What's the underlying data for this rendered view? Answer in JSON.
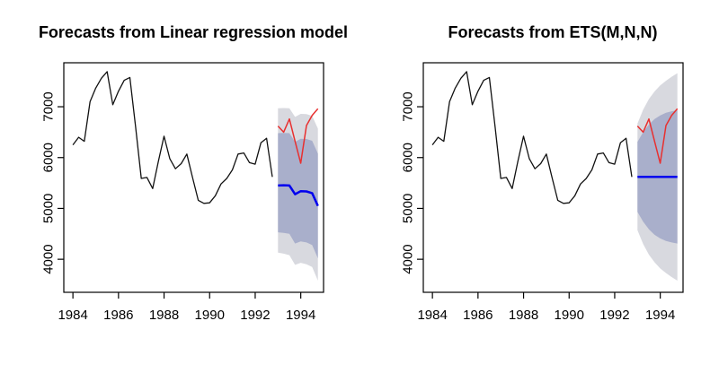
{
  "figure": {
    "background": "#ffffff",
    "panel_count": 2
  },
  "chart_data": [
    {
      "type": "line",
      "title": "Forecasts from Linear regression model",
      "x_axis": {
        "label": "",
        "ticks": [
          1984,
          1986,
          1988,
          1990,
          1992,
          1994
        ],
        "range": [
          1983.6,
          1995.0
        ]
      },
      "y_axis": {
        "label": "",
        "ticks": [
          4000,
          5000,
          6000,
          7000
        ],
        "range": [
          3350,
          7865
        ]
      },
      "grid": false,
      "legend": "none",
      "bands": [
        {
          "level": "95",
          "color": "#D8D9DF",
          "x": [
            1993,
            1993.25,
            1993.5,
            1993.75,
            1994,
            1994.25,
            1994.5,
            1994.75
          ],
          "hi": [
            6970,
            6975,
            6970,
            6800,
            6860,
            6855,
            6820,
            6570
          ],
          "lo": [
            4130,
            4110,
            4080,
            3890,
            3930,
            3900,
            3850,
            3580
          ]
        },
        {
          "level": "80",
          "color": "#A9AFCB",
          "x": [
            1993,
            1993.25,
            1993.5,
            1993.75,
            1994,
            1994.25,
            1994.5,
            1994.75
          ],
          "hi": [
            6480,
            6485,
            6480,
            6310,
            6370,
            6365,
            6330,
            6080
          ],
          "lo": [
            4530,
            4520,
            4500,
            4310,
            4350,
            4330,
            4280,
            4020
          ]
        }
      ],
      "series": [
        {
          "name": "historical",
          "color": "#111111",
          "width": 1.3,
          "x": [
            1984,
            1984.25,
            1984.5,
            1984.75,
            1985,
            1985.25,
            1985.5,
            1985.75,
            1986,
            1986.25,
            1986.5,
            1986.75,
            1987,
            1987.25,
            1987.5,
            1987.75,
            1988,
            1988.25,
            1988.5,
            1988.75,
            1989,
            1989.25,
            1989.5,
            1989.75,
            1990,
            1990.25,
            1990.5,
            1990.75,
            1991,
            1991.25,
            1991.5,
            1991.75,
            1992,
            1992.25,
            1992.5,
            1992.75
          ],
          "values": [
            6250,
            6400,
            6320,
            7100,
            7365,
            7560,
            7690,
            7040,
            7305,
            7520,
            7575,
            6600,
            5590,
            5610,
            5390,
            5925,
            6420,
            5980,
            5780,
            5880,
            6070,
            5610,
            5160,
            5100,
            5110,
            5250,
            5480,
            5590,
            5760,
            6070,
            6090,
            5900,
            5870,
            6290,
            6380,
            5620
          ]
        },
        {
          "name": "forecast-mean",
          "color": "#0000EE",
          "width": 2.5,
          "x": [
            1993,
            1993.25,
            1993.5,
            1993.75,
            1994,
            1994.25,
            1994.5,
            1994.75
          ],
          "values": [
            5450,
            5455,
            5450,
            5280,
            5340,
            5335,
            5300,
            5050
          ]
        },
        {
          "name": "actual",
          "color": "#E83030",
          "width": 1.5,
          "x": [
            1993,
            1993.25,
            1993.5,
            1993.75,
            1994,
            1994.25,
            1994.5,
            1994.75
          ],
          "values": [
            6620,
            6500,
            6760,
            6320,
            5890,
            6630,
            6830,
            6960
          ]
        }
      ]
    },
    {
      "type": "line",
      "title": "Forecasts from ETS(M,N,N)",
      "x_axis": {
        "label": "",
        "ticks": [
          1984,
          1986,
          1988,
          1990,
          1992,
          1994
        ],
        "range": [
          1983.6,
          1995.0
        ]
      },
      "y_axis": {
        "label": "",
        "ticks": [
          4000,
          5000,
          6000,
          7000
        ],
        "range": [
          3350,
          7865
        ]
      },
      "grid": false,
      "legend": "none",
      "bands": [
        {
          "level": "95",
          "color": "#D8D9DF",
          "x": [
            1993,
            1993.25,
            1993.5,
            1993.75,
            1994,
            1994.25,
            1994.5,
            1994.75
          ],
          "hi": [
            6670,
            6940,
            7150,
            7300,
            7420,
            7510,
            7590,
            7660
          ],
          "lo": [
            4570,
            4300,
            4090,
            3940,
            3820,
            3730,
            3650,
            3580
          ]
        },
        {
          "level": "80",
          "color": "#A9AFCB",
          "x": [
            1993,
            1993.25,
            1993.5,
            1993.75,
            1994,
            1994.25,
            1994.5,
            1994.75
          ],
          "hi": [
            6310,
            6500,
            6650,
            6760,
            6830,
            6880,
            6910,
            6930
          ],
          "lo": [
            4930,
            4740,
            4590,
            4480,
            4410,
            4360,
            4330,
            4310
          ]
        }
      ],
      "series": [
        {
          "name": "historical",
          "color": "#111111",
          "width": 1.3,
          "x": [
            1984,
            1984.25,
            1984.5,
            1984.75,
            1985,
            1985.25,
            1985.5,
            1985.75,
            1986,
            1986.25,
            1986.5,
            1986.75,
            1987,
            1987.25,
            1987.5,
            1987.75,
            1988,
            1988.25,
            1988.5,
            1988.75,
            1989,
            1989.25,
            1989.5,
            1989.75,
            1990,
            1990.25,
            1990.5,
            1990.75,
            1991,
            1991.25,
            1991.5,
            1991.75,
            1992,
            1992.25,
            1992.5,
            1992.75
          ],
          "values": [
            6250,
            6400,
            6320,
            7100,
            7365,
            7560,
            7690,
            7040,
            7305,
            7520,
            7575,
            6600,
            5590,
            5610,
            5390,
            5925,
            6420,
            5980,
            5780,
            5880,
            6070,
            5610,
            5160,
            5100,
            5110,
            5250,
            5480,
            5590,
            5760,
            6070,
            6090,
            5900,
            5870,
            6290,
            6380,
            5620
          ]
        },
        {
          "name": "forecast-mean",
          "color": "#0000EE",
          "width": 2.5,
          "x": [
            1993,
            1993.25,
            1993.5,
            1993.75,
            1994,
            1994.25,
            1994.5,
            1994.75
          ],
          "values": [
            5620,
            5620,
            5620,
            5620,
            5620,
            5620,
            5620,
            5620
          ]
        },
        {
          "name": "actual",
          "color": "#E83030",
          "width": 1.5,
          "x": [
            1993,
            1993.25,
            1993.5,
            1993.75,
            1994,
            1994.25,
            1994.5,
            1994.75
          ],
          "values": [
            6620,
            6500,
            6760,
            6320,
            5890,
            6630,
            6830,
            6960
          ]
        }
      ]
    }
  ]
}
